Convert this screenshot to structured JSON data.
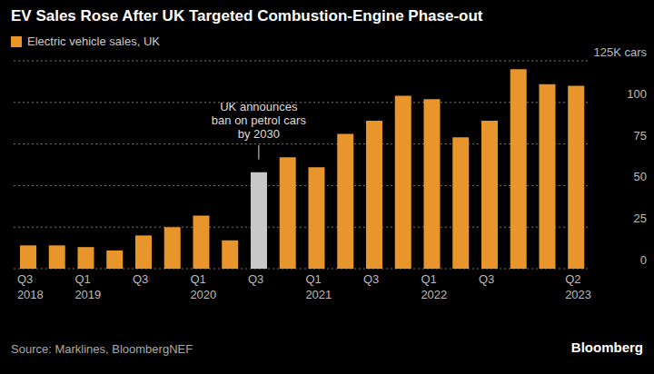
{
  "chart_data": {
    "type": "bar",
    "title": "EV Sales Rose After UK Targeted Combustion-Engine Phase-out",
    "categories": [
      "Q3 2018",
      null,
      "Q1 2019",
      null,
      "Q3",
      null,
      "Q1 2020",
      null,
      "Q3",
      null,
      "Q1 2021",
      null,
      "Q3",
      null,
      "Q1 2022",
      null,
      "Q3",
      null,
      null,
      "Q2 2023"
    ],
    "series": [
      {
        "name": "Electric vehicle sales, UK",
        "color": "#e8952b",
        "values": [
          14,
          14,
          13,
          11,
          20,
          25,
          32,
          17,
          58,
          67,
          61,
          81,
          89,
          104,
          102,
          79,
          89,
          120,
          111,
          110
        ]
      }
    ],
    "colors": [
      "#e8952b",
      "#e8952b",
      "#e8952b",
      "#e8952b",
      "#e8952b",
      "#e8952b",
      "#e8952b",
      "#e8952b",
      "#c8c8c8",
      "#e8952b",
      "#e8952b",
      "#e8952b",
      "#e8952b",
      "#e8952b",
      "#e8952b",
      "#e8952b",
      "#e8952b",
      "#e8952b",
      "#e8952b",
      "#e8952b"
    ],
    "ylim": [
      0,
      125
    ],
    "yticks": [
      0,
      25,
      50,
      75,
      100,
      {
        "value": 125,
        "label": "125K cars"
      }
    ],
    "grid": true,
    "legend": "top left",
    "annotations": [
      {
        "x": 8,
        "lines": [
          "UK announces",
          "ban on petrol cars",
          "by 2030"
        ]
      }
    ],
    "source": "Source: Marklines, BloombergNEF",
    "credit": "Bloomberg"
  }
}
